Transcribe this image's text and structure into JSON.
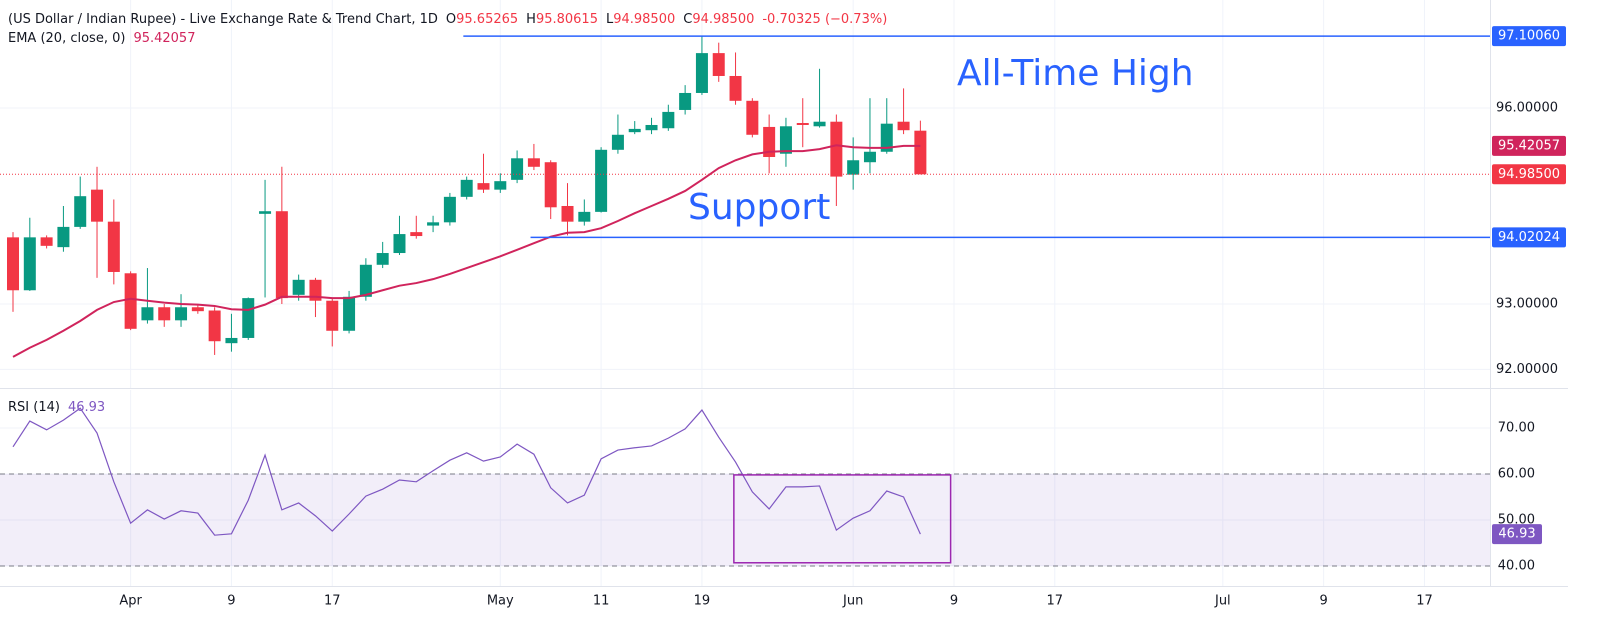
{
  "chart_data": [
    {
      "type": "candlestick",
      "title": "(US Dollar / Indian Rupee) - Live Exchange Rate & Trend Chart, 1D",
      "ohlc_legend": [
        {
          "key": "O",
          "text": "95.65265"
        },
        {
          "key": "H",
          "text": "95.80615"
        },
        {
          "key": "L",
          "text": "94.98500"
        },
        {
          "key": "C",
          "text": "94.98500"
        }
      ],
      "change": "-0.70325 (−0.73%)",
      "legend_value_color": "#f23645",
      "up_color": "#089981",
      "down_color": "#f23645",
      "x": [
        0,
        1,
        2,
        3,
        4,
        5,
        6,
        7,
        8,
        9,
        10,
        11,
        12,
        13,
        14,
        15,
        16,
        17,
        18,
        19,
        20,
        21,
        22,
        23,
        24,
        25,
        26,
        27,
        28,
        29,
        30,
        31,
        32,
        33,
        34,
        35,
        36,
        37,
        38,
        39,
        40,
        41,
        42,
        43,
        44,
        45,
        46,
        47,
        48,
        49,
        50,
        51,
        52,
        53,
        54
      ],
      "open": [
        94.02,
        93.21,
        94.02,
        93.87,
        94.18,
        94.75,
        94.26,
        93.47,
        92.75,
        92.95,
        92.75,
        92.95,
        92.9,
        92.4,
        92.48,
        94.38,
        94.42,
        93.14,
        93.37,
        93.05,
        92.59,
        93.11,
        93.6,
        93.78,
        94.1,
        94.2,
        94.25,
        94.64,
        94.85,
        94.75,
        94.9,
        95.23,
        95.17,
        94.5,
        94.26,
        94.41,
        95.36,
        95.63,
        95.66,
        95.69,
        95.97,
        96.23,
        96.84,
        96.49,
        96.11,
        95.71,
        95.3,
        95.77,
        95.72,
        95.79,
        94.98,
        95.17,
        95.33,
        95.79,
        95.65265
      ],
      "high": [
        94.1,
        94.32,
        94.05,
        94.5,
        94.95,
        95.1,
        94.6,
        93.5,
        93.55,
        93.0,
        93.15,
        93.0,
        92.95,
        92.85,
        93.1,
        94.9,
        95.1,
        93.45,
        93.4,
        93.1,
        93.2,
        93.7,
        93.95,
        94.35,
        94.35,
        94.35,
        94.7,
        94.95,
        95.3,
        95.0,
        95.35,
        95.45,
        95.2,
        94.85,
        94.6,
        95.4,
        95.9,
        95.8,
        95.85,
        96.05,
        96.35,
        97.1,
        97.0,
        96.85,
        96.15,
        95.9,
        95.85,
        96.15,
        96.6,
        95.9,
        95.55,
        96.15,
        96.15,
        96.3,
        95.80615
      ],
      "low": [
        92.88,
        93.2,
        93.85,
        93.8,
        94.15,
        93.4,
        93.3,
        92.6,
        92.7,
        92.65,
        92.65,
        92.85,
        92.22,
        92.27,
        92.45,
        93.1,
        93.0,
        93.05,
        92.8,
        92.35,
        92.55,
        93.05,
        93.55,
        93.75,
        94.0,
        94.1,
        94.2,
        94.6,
        94.7,
        94.7,
        94.85,
        95.05,
        94.3,
        94.05,
        94.2,
        94.4,
        95.3,
        95.6,
        95.6,
        95.65,
        95.9,
        96.2,
        96.4,
        96.05,
        95.55,
        95.0,
        95.1,
        95.4,
        95.7,
        94.5,
        94.75,
        95.0,
        95.3,
        95.6,
        94.985
      ],
      "close": [
        93.21,
        94.02,
        93.89,
        94.18,
        94.65,
        94.26,
        93.49,
        92.62,
        92.95,
        92.75,
        92.95,
        92.89,
        92.43,
        92.48,
        93.09,
        94.42,
        93.09,
        93.37,
        93.05,
        92.59,
        93.11,
        93.6,
        93.78,
        94.07,
        94.04,
        94.25,
        94.64,
        94.9,
        94.75,
        94.88,
        95.23,
        95.1,
        94.48,
        94.26,
        94.41,
        95.36,
        95.59,
        95.68,
        95.74,
        95.94,
        96.23,
        96.84,
        96.49,
        96.11,
        95.59,
        95.25,
        95.72,
        95.74,
        95.79,
        94.95,
        95.2,
        95.33,
        95.76,
        95.66,
        94.985
      ],
      "ema": {
        "name": "EMA (20, close, 0)",
        "value_label": "95.42057",
        "color": "#d0245c",
        "values": [
          92.19,
          92.33,
          92.45,
          92.59,
          92.74,
          92.91,
          93.03,
          93.08,
          93.05,
          93.02,
          93.0,
          92.99,
          92.97,
          92.92,
          92.91,
          92.99,
          93.11,
          93.11,
          93.11,
          93.09,
          93.09,
          93.14,
          93.21,
          93.28,
          93.32,
          93.38,
          93.46,
          93.55,
          93.64,
          93.73,
          93.83,
          93.93,
          94.03,
          94.09,
          94.1,
          94.16,
          94.27,
          94.39,
          94.5,
          94.61,
          94.73,
          94.9,
          95.08,
          95.2,
          95.29,
          95.33,
          95.34,
          95.34,
          95.37,
          95.43,
          95.4,
          95.39,
          95.39,
          95.42,
          95.42057
        ]
      },
      "levels": [
        {
          "value": 97.1006,
          "label": "97.10060",
          "start": 26.8,
          "color": "#2962ff"
        },
        {
          "value": 94.02024,
          "label": "94.02024",
          "start": 30.8,
          "color": "#2962ff"
        }
      ],
      "annotations": [
        "All-Time High",
        "Support"
      ],
      "ylim": [
        91.714,
        97.653
      ],
      "yticks": [
        {
          "value": 92,
          "label": "92.00000"
        },
        {
          "value": 93,
          "label": "93.00000"
        },
        {
          "value": 96,
          "label": "96.00000"
        }
      ],
      "xlim": [
        -0.774,
        87.9
      ],
      "xticks": [
        {
          "value": 7,
          "label": "Apr"
        },
        {
          "value": 13,
          "label": "9"
        },
        {
          "value": 19,
          "label": "17"
        },
        {
          "value": 29,
          "label": "May"
        },
        {
          "value": 35,
          "label": "11"
        },
        {
          "value": 41,
          "label": "19"
        },
        {
          "value": 50,
          "label": "Jun"
        },
        {
          "value": 56,
          "label": "9"
        },
        {
          "value": 62,
          "label": "17"
        },
        {
          "value": 72,
          "label": "Jul"
        },
        {
          "value": 78,
          "label": "9"
        },
        {
          "value": 84,
          "label": "17"
        }
      ],
      "grid": true
    },
    {
      "type": "line",
      "name": "RSI (14)",
      "value_label": "46.93",
      "color": "#7e57c2",
      "values": [
        65.9,
        71.5,
        69.6,
        71.7,
        74.3,
        68.9,
        58.3,
        49.3,
        52.2,
        50.2,
        52.0,
        51.5,
        46.7,
        47.0,
        54.3,
        64.1,
        52.2,
        53.7,
        50.9,
        47.6,
        51.3,
        55.2,
        56.7,
        58.7,
        58.3,
        60.7,
        63.0,
        64.6,
        62.8,
        63.7,
        66.5,
        64.3,
        57.0,
        53.7,
        55.4,
        63.3,
        65.2,
        65.7,
        66.1,
        67.8,
        69.8,
        73.9,
        68.0,
        62.6,
        56.1,
        52.4,
        57.2,
        57.2,
        57.4,
        47.8,
        50.4,
        52.0,
        56.3,
        55.0,
        46.93
      ],
      "band": [
        40,
        60
      ],
      "highlight_box": {
        "x": [
          42.9,
          55.8
        ],
        "y": [
          40.7,
          59.8
        ],
        "color": "#9c27b0"
      },
      "ylim": [
        35.65,
        78.26
      ],
      "yticks": [
        {
          "value": 40,
          "label": "40.00"
        },
        {
          "value": 50,
          "label": "50.00"
        },
        {
          "value": 60,
          "label": "60.00"
        },
        {
          "value": 70,
          "label": "70.00"
        }
      ],
      "grid": true
    }
  ]
}
